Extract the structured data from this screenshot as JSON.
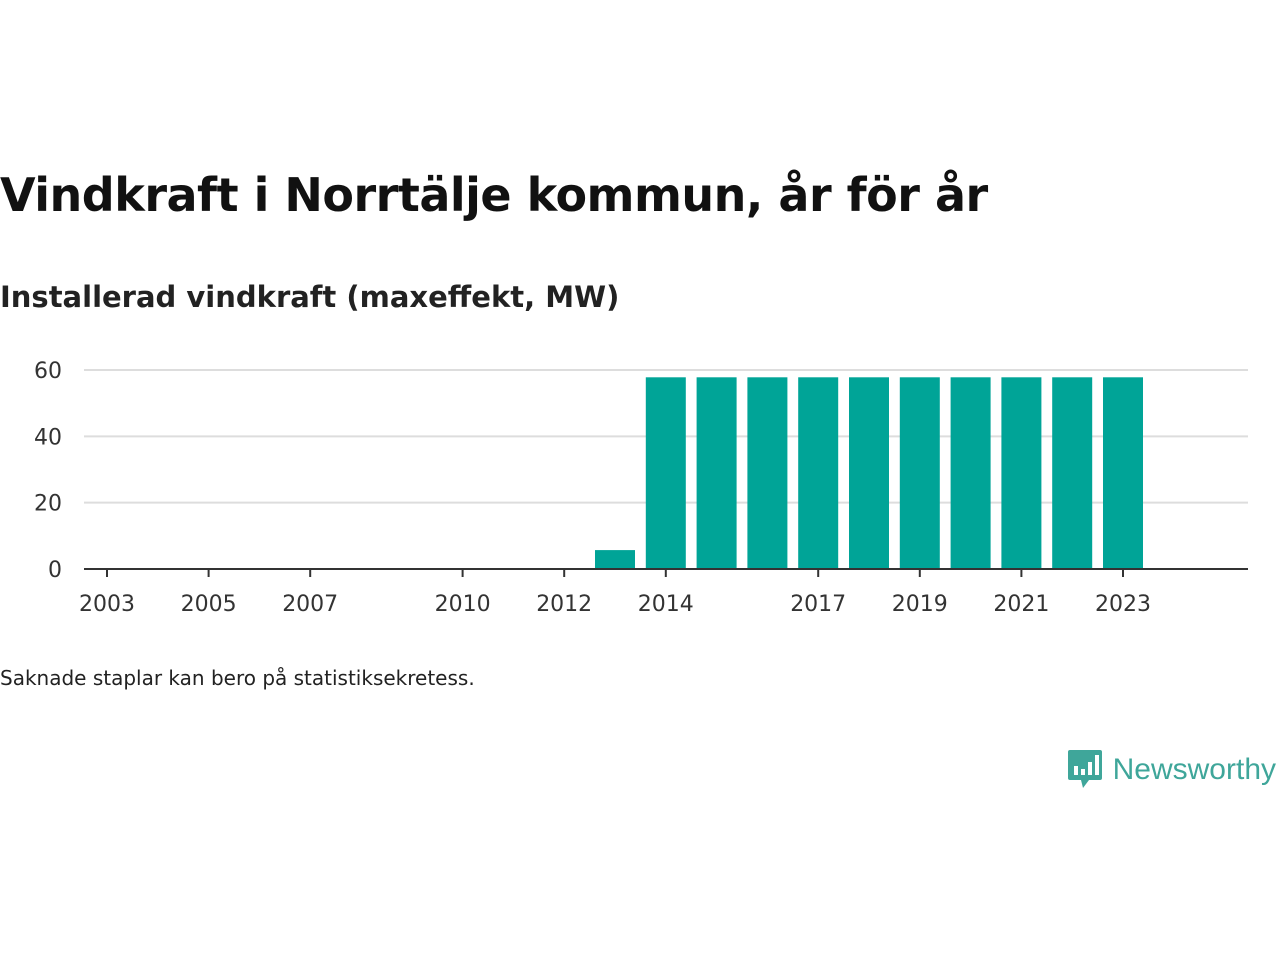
{
  "header": {
    "title": "Vindkraft i Norrtälje kommun, år för år",
    "subtitle": "Installerad vindkraft (maxeffekt, MW)"
  },
  "footer": {
    "note": "Saknade staplar kan bero på statistiksekretess.",
    "brand": "Newsworthy",
    "logo_icon": "bar-chart-speech-bubble-icon"
  },
  "colors": {
    "bar": "#00a497",
    "grid": "#dddddd",
    "axis": "#333333",
    "tick_text": "#333333",
    "brand": "#3fa69a"
  },
  "chart_data": {
    "type": "bar",
    "categories": [
      "2003",
      "2004",
      "2005",
      "2006",
      "2007",
      "2008",
      "2009",
      "2010",
      "2011",
      "2012",
      "2013",
      "2014",
      "2015",
      "2016",
      "2017",
      "2018",
      "2019",
      "2020",
      "2021",
      "2022",
      "2023"
    ],
    "values": [
      null,
      null,
      null,
      null,
      null,
      null,
      null,
      null,
      0.3,
      0.3,
      5.7,
      57.8,
      57.8,
      57.8,
      57.8,
      57.8,
      57.8,
      57.8,
      57.8,
      57.8,
      57.8
    ],
    "x_tick_labels": [
      "2003",
      "2005",
      "2007",
      "2010",
      "2012",
      "2014",
      "2017",
      "2019",
      "2021",
      "2023"
    ],
    "y_ticks": [
      "0",
      "20",
      "40",
      "60"
    ],
    "ylim": [
      0,
      60
    ],
    "grid": true,
    "legend": "none"
  }
}
